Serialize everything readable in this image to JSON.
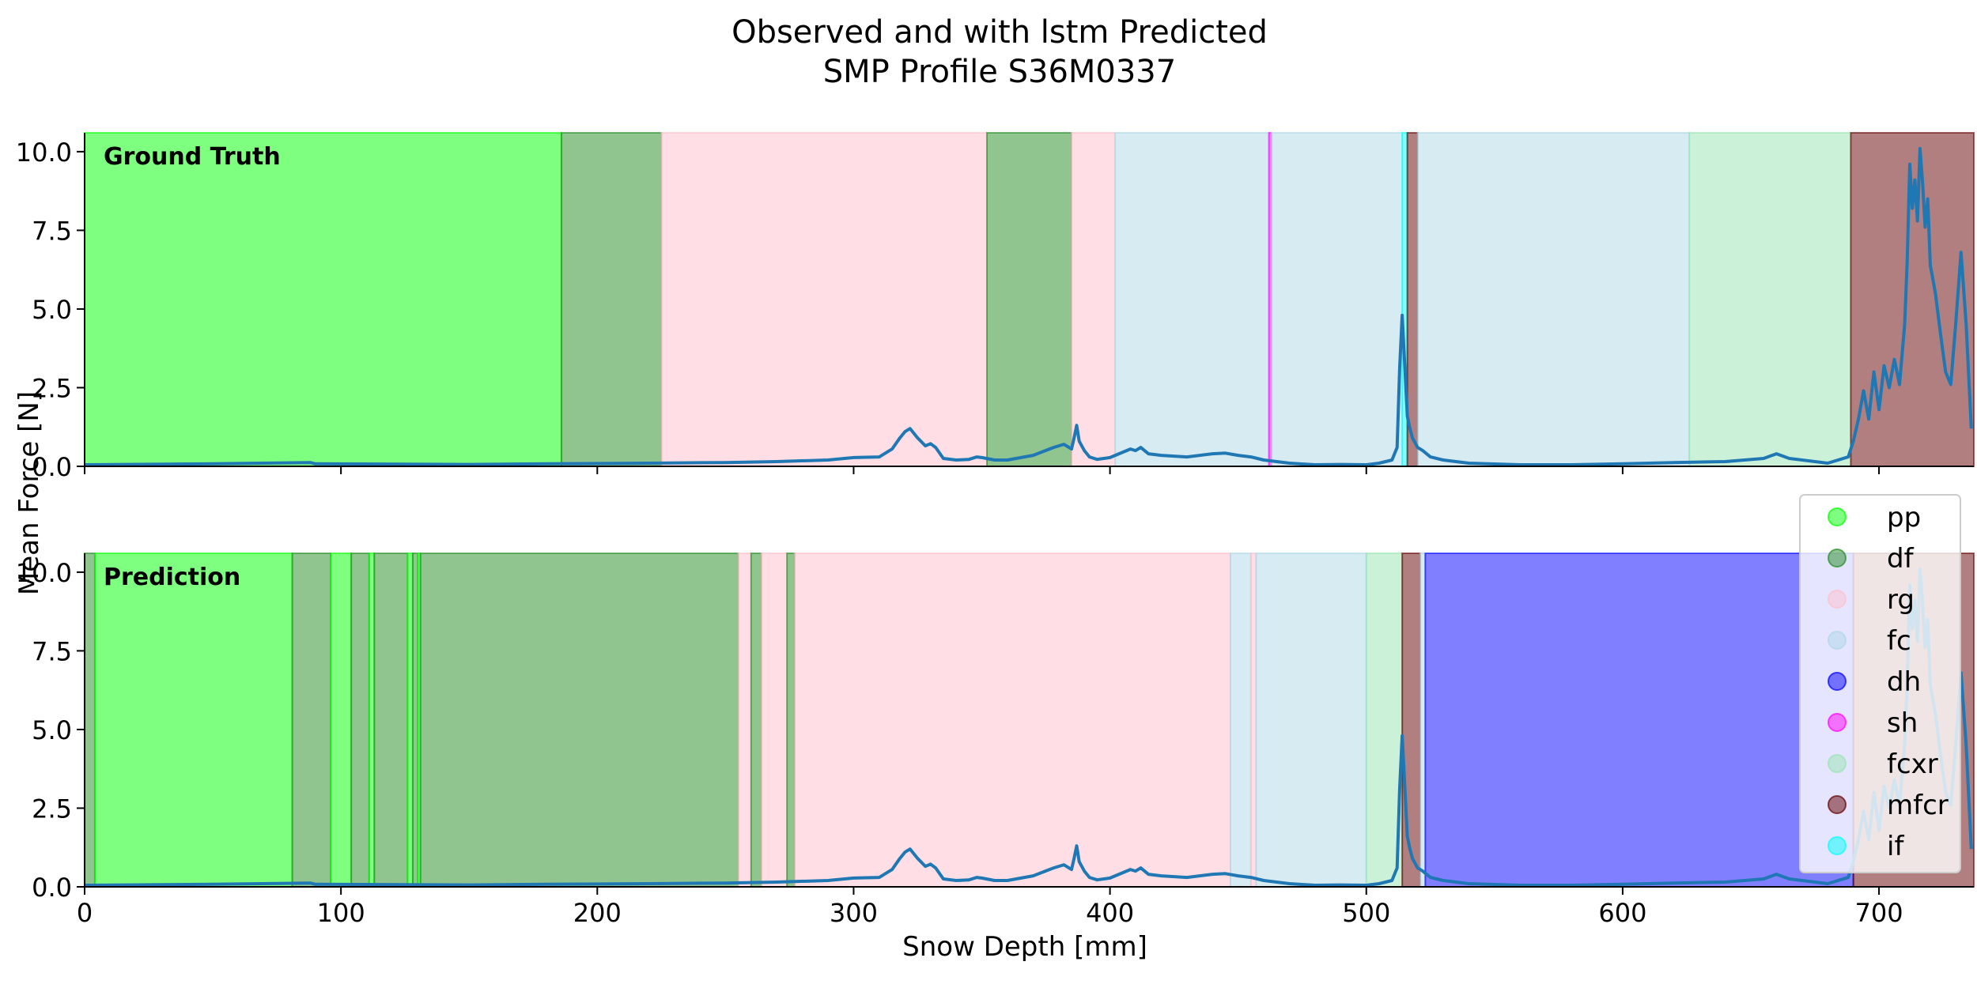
{
  "title": {
    "line1": "Observed and with lstm Predicted",
    "line2": "SMP Profile S36M0337"
  },
  "chart_data": {
    "type": "line",
    "shared_xlabel": "Snow Depth [mm]",
    "shared_ylabel": "Mean Force [N]",
    "xlim": [
      0,
      737
    ],
    "ylim": [
      0,
      10.6
    ],
    "xticks": [
      0,
      100,
      200,
      300,
      400,
      500,
      600,
      700
    ],
    "xtick_labels": [
      "0",
      "100",
      "200",
      "300",
      "400",
      "500",
      "600",
      "700"
    ],
    "yticks": [
      0,
      2.5,
      5,
      7.5,
      10
    ],
    "ytick_labels": [
      "0.0",
      "2.5",
      "5.0",
      "7.5",
      "10.0"
    ],
    "colors": {
      "pp": "#00ff00",
      "df": "#228b22",
      "rg": "#ffc0cb",
      "fc": "#add8e6",
      "dh": "#0000ff",
      "sh": "#ff00ff",
      "fcxr": "#98e6b2",
      "mfcr": "#630000",
      "if": "#00ffff"
    },
    "line_color": "#1f77b4",
    "legend": {
      "position": "right, lower panel",
      "entries": [
        "pp",
        "df",
        "rg",
        "fc",
        "dh",
        "sh",
        "fcxr",
        "mfcr",
        "if"
      ]
    },
    "signal": {
      "x": [
        0,
        50,
        88,
        90,
        150,
        180,
        220,
        250,
        270,
        290,
        300,
        310,
        315,
        318,
        320,
        322,
        325,
        328,
        330,
        332,
        335,
        340,
        345,
        348,
        350,
        355,
        360,
        370,
        378,
        382,
        385,
        386,
        387,
        388,
        390,
        392,
        395,
        400,
        405,
        408,
        410,
        412,
        415,
        420,
        430,
        440,
        445,
        450,
        455,
        460,
        470,
        480,
        490,
        500,
        505,
        510,
        512,
        513,
        514,
        515,
        516,
        517,
        518,
        520,
        522,
        525,
        530,
        540,
        560,
        580,
        600,
        620,
        640,
        655,
        660,
        665,
        680,
        688,
        690,
        692,
        694,
        696,
        698,
        700,
        702,
        704,
        706,
        708,
        710,
        711,
        712,
        713,
        714,
        715,
        716,
        717,
        718,
        719,
        720,
        722,
        724,
        726,
        728,
        730,
        732,
        734,
        736
      ],
      "y": [
        0.05,
        0.08,
        0.12,
        0.08,
        0.06,
        0.08,
        0.1,
        0.12,
        0.15,
        0.2,
        0.28,
        0.3,
        0.55,
        0.9,
        1.1,
        1.2,
        0.9,
        0.65,
        0.72,
        0.6,
        0.25,
        0.2,
        0.22,
        0.3,
        0.28,
        0.2,
        0.2,
        0.35,
        0.6,
        0.7,
        0.55,
        0.9,
        1.3,
        0.8,
        0.5,
        0.3,
        0.22,
        0.28,
        0.45,
        0.55,
        0.5,
        0.6,
        0.4,
        0.35,
        0.3,
        0.4,
        0.42,
        0.35,
        0.3,
        0.2,
        0.1,
        0.05,
        0.06,
        0.05,
        0.1,
        0.2,
        0.6,
        3.1,
        4.8,
        3.2,
        1.6,
        1.2,
        0.9,
        0.6,
        0.5,
        0.3,
        0.2,
        0.1,
        0.05,
        0.05,
        0.08,
        0.12,
        0.15,
        0.25,
        0.4,
        0.25,
        0.1,
        0.3,
        0.8,
        1.5,
        2.4,
        1.5,
        3.0,
        1.8,
        3.2,
        2.5,
        3.4,
        2.6,
        4.5,
        6.5,
        9.6,
        8.2,
        9.1,
        7.8,
        10.1,
        9.0,
        7.6,
        8.5,
        6.4,
        5.5,
        4.2,
        3.0,
        2.6,
        4.6,
        6.8,
        4.5,
        1.2
      ]
    },
    "panels": [
      {
        "name": "Ground Truth",
        "bands": [
          {
            "start": 0,
            "end": 186,
            "label": "pp"
          },
          {
            "start": 186,
            "end": 225,
            "label": "df"
          },
          {
            "start": 225,
            "end": 352,
            "label": "rg"
          },
          {
            "start": 352,
            "end": 385,
            "label": "df"
          },
          {
            "start": 385,
            "end": 402,
            "label": "rg"
          },
          {
            "start": 402,
            "end": 462,
            "label": "fc"
          },
          {
            "start": 462,
            "end": 463,
            "label": "sh"
          },
          {
            "start": 463,
            "end": 514,
            "label": "fc"
          },
          {
            "start": 514,
            "end": 516,
            "label": "if"
          },
          {
            "start": 516,
            "end": 520,
            "label": "mfcr"
          },
          {
            "start": 520,
            "end": 626,
            "label": "fc"
          },
          {
            "start": 626,
            "end": 689,
            "label": "fcxr"
          },
          {
            "start": 689,
            "end": 737,
            "label": "mfcr"
          }
        ]
      },
      {
        "name": "Prediction",
        "bands": [
          {
            "start": 0,
            "end": 4,
            "label": "df"
          },
          {
            "start": 4,
            "end": 81,
            "label": "pp"
          },
          {
            "start": 81,
            "end": 96,
            "label": "df"
          },
          {
            "start": 96,
            "end": 104,
            "label": "pp"
          },
          {
            "start": 104,
            "end": 111,
            "label": "df"
          },
          {
            "start": 111,
            "end": 113,
            "label": "pp"
          },
          {
            "start": 113,
            "end": 126,
            "label": "df"
          },
          {
            "start": 126,
            "end": 128,
            "label": "pp"
          },
          {
            "start": 128,
            "end": 130,
            "label": "df"
          },
          {
            "start": 130,
            "end": 131,
            "label": "pp"
          },
          {
            "start": 131,
            "end": 255,
            "label": "df"
          },
          {
            "start": 255,
            "end": 260,
            "label": "rg"
          },
          {
            "start": 260,
            "end": 264,
            "label": "df"
          },
          {
            "start": 264,
            "end": 274,
            "label": "rg"
          },
          {
            "start": 274,
            "end": 277,
            "label": "df"
          },
          {
            "start": 277,
            "end": 447,
            "label": "rg"
          },
          {
            "start": 447,
            "end": 455,
            "label": "fc"
          },
          {
            "start": 455,
            "end": 457,
            "label": "rg"
          },
          {
            "start": 457,
            "end": 500,
            "label": "fc"
          },
          {
            "start": 500,
            "end": 514,
            "label": "fcxr"
          },
          {
            "start": 514,
            "end": 521,
            "label": "mfcr"
          },
          {
            "start": 521,
            "end": 523,
            "label": "fc"
          },
          {
            "start": 523,
            "end": 690,
            "label": "dh"
          },
          {
            "start": 690,
            "end": 737,
            "label": "mfcr"
          }
        ]
      }
    ]
  }
}
